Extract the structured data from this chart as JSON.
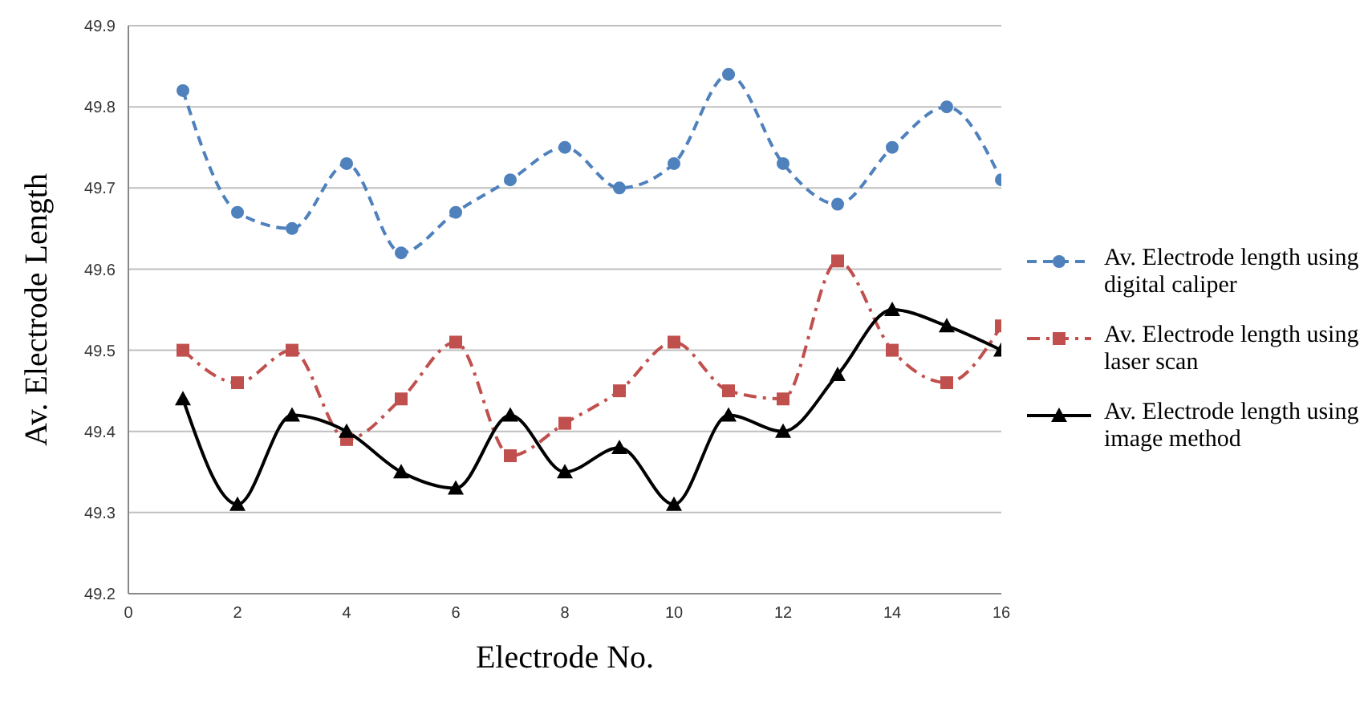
{
  "chart_data": {
    "type": "line",
    "xlabel": "Electrode No.",
    "ylabel": "Av. Electrode Length",
    "x": [
      1,
      2,
      3,
      4,
      5,
      6,
      7,
      8,
      9,
      10,
      11,
      12,
      13,
      14,
      15,
      16
    ],
    "xlim": [
      0,
      16
    ],
    "xticks": [
      0,
      2,
      4,
      6,
      8,
      10,
      12,
      14,
      16
    ],
    "ylim": [
      49.2,
      49.9
    ],
    "yticks": [
      49.2,
      49.3,
      49.4,
      49.5,
      49.6,
      49.7,
      49.8,
      49.9
    ],
    "grid": "y",
    "legend": "right",
    "series": [
      {
        "name": "Av. Electrode length using digital caliper",
        "color": "#4f81bd",
        "marker": "circle",
        "line_style": "dashed",
        "values": [
          49.82,
          49.67,
          49.65,
          49.73,
          49.62,
          49.67,
          49.71,
          49.75,
          49.7,
          49.73,
          49.84,
          49.73,
          49.68,
          49.75,
          49.8,
          49.71
        ]
      },
      {
        "name": "Av. Electrode length using laser scan",
        "color": "#c0504d",
        "marker": "square",
        "line_style": "dashed",
        "values": [
          49.5,
          49.46,
          49.5,
          49.39,
          49.44,
          49.51,
          49.37,
          49.41,
          49.45,
          49.51,
          49.45,
          49.44,
          49.61,
          49.5,
          49.46,
          49.53
        ]
      },
      {
        "name": "Av. Electrode length using image method",
        "color": "#000000",
        "marker": "triangle",
        "line_style": "solid",
        "values": [
          49.44,
          49.31,
          49.42,
          49.4,
          49.35,
          49.33,
          49.42,
          49.35,
          49.38,
          49.31,
          49.42,
          49.4,
          49.47,
          49.55,
          49.53,
          49.5
        ]
      }
    ]
  }
}
